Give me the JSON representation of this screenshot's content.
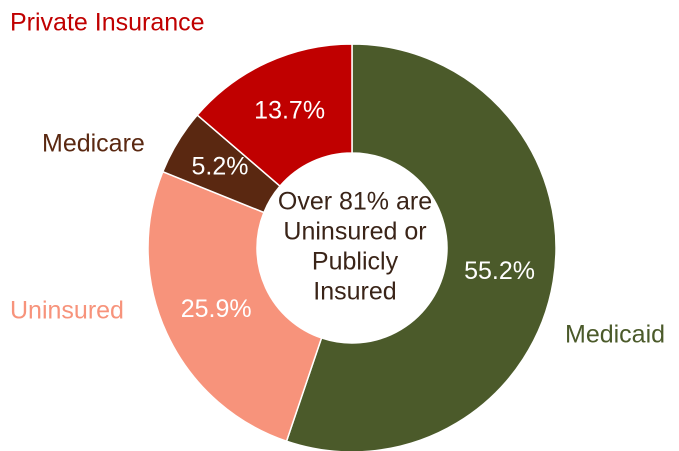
{
  "chart_data": {
    "type": "donut",
    "categories": [
      "Medicaid",
      "Uninsured",
      "Medicare",
      "Private Insurance"
    ],
    "values": [
      55.2,
      25.9,
      5.2,
      13.7
    ],
    "value_labels": [
      "55.2%",
      "25.9%",
      "5.2%",
      "13.7%"
    ],
    "colors": [
      "#4b5a2a",
      "#f7937b",
      "#5a2811",
      "#c00000"
    ],
    "annotation": [
      "Over 81% are",
      "Uninsured or",
      "Publicly",
      "Insured"
    ]
  }
}
